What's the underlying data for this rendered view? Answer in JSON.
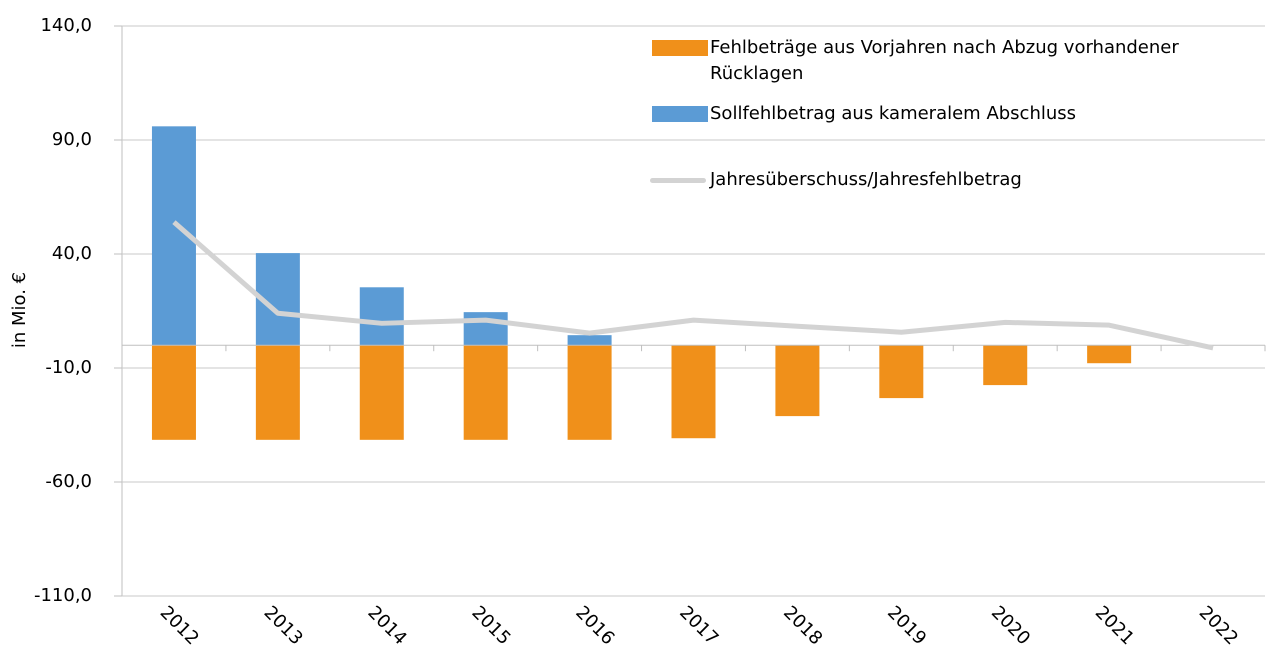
{
  "chart_data": {
    "type": "bar",
    "y_label": "in Mio. €",
    "categories": [
      "2012",
      "2013",
      "2014",
      "2015",
      "2016",
      "2017",
      "2018",
      "2019",
      "2020",
      "2021",
      "2022"
    ],
    "series": [
      {
        "name": "Fehlbeträge aus Vorjahren nach Abzug vorhandener Rücklagen",
        "type": "bar",
        "color": "#f0901a",
        "values": [
          -41.5,
          -41.5,
          -41.5,
          -41.5,
          -41.5,
          -40.8,
          -31.1,
          -23.2,
          -17.5,
          -7.9,
          null
        ]
      },
      {
        "name": "Sollfehlbetrag aus kameralem Abschluss",
        "type": "bar",
        "color": "#5b9bd5",
        "values": [
          96,
          40.4,
          25.4,
          14.5,
          4.4,
          null,
          null,
          null,
          null,
          null,
          null
        ]
      },
      {
        "name": "Jahresüberschuss/Jahresfehlbetrag",
        "type": "line",
        "color": "#d3d3d3",
        "values": [
          54,
          14,
          9.6,
          11,
          5.3,
          11,
          8.3,
          5.7,
          10,
          8.8,
          -1.2
        ]
      }
    ],
    "ylim": [
      -110,
      140
    ],
    "yticks": [
      {
        "value": -110,
        "label": "-110,0"
      },
      {
        "value": -60,
        "label": "-60,0"
      },
      {
        "value": -10,
        "label": "-10,0"
      },
      {
        "value": 40,
        "label": "40,0"
      },
      {
        "value": 90,
        "label": "90,0"
      },
      {
        "value": 140,
        "label": "140,0"
      }
    ],
    "grid": true
  }
}
